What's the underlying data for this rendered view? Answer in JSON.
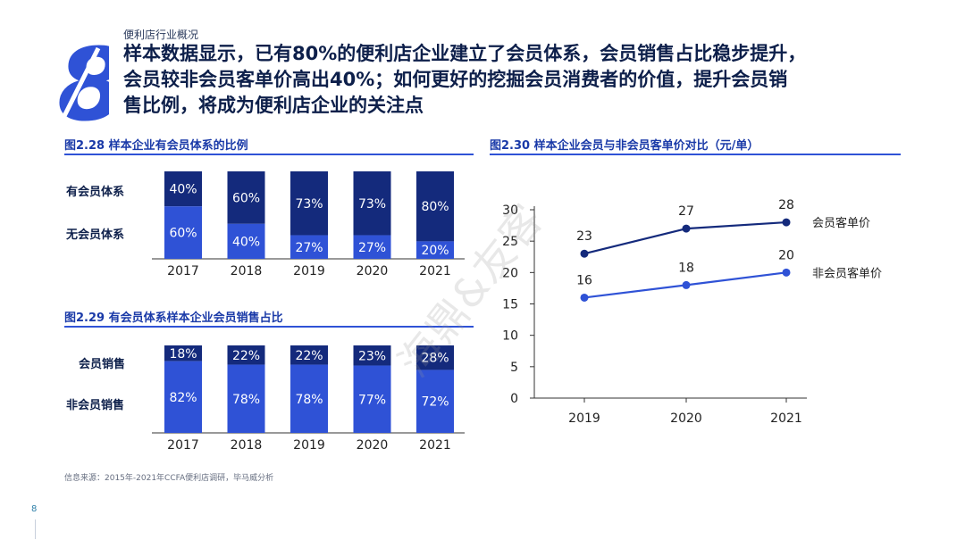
{
  "header": {
    "page_number_glyph": "8",
    "section": "便利店行业概况",
    "headline_lines": [
      "样本数据显示，已有80%的便利店企业建立了会员体系，会员销售占比稳步提升，",
      "会员较非会员客单价高出40%；如何更好的挖掘会员消费者的价值，提升会员销",
      "售比例，将成为便利店企业的关注点"
    ]
  },
  "colors": {
    "dark": "#142a7c",
    "light": "#2f52d6",
    "accent": "#1a3aa8"
  },
  "chart_data": [
    {
      "type": "bar",
      "stacked": true,
      "title": "图2.28 样本企业有会员体系的比例",
      "categories": [
        "2017",
        "2018",
        "2019",
        "2020",
        "2021"
      ],
      "series": [
        {
          "name": "有会员体系",
          "values": [
            40,
            60,
            73,
            73,
            80
          ],
          "labels": [
            "40%",
            "60%",
            "73%",
            "73%",
            "80%"
          ]
        },
        {
          "name": "无会员体系",
          "values": [
            60,
            40,
            27,
            27,
            20
          ],
          "labels": [
            "60%",
            "40%",
            "27%",
            "27%",
            "20%"
          ]
        }
      ],
      "ylim": [
        0,
        100
      ]
    },
    {
      "type": "bar",
      "stacked": true,
      "title": "图2.29 有会员体系样本企业会员销售占比",
      "categories": [
        "2017",
        "2018",
        "2019",
        "2020",
        "2021"
      ],
      "series": [
        {
          "name": "会员销售",
          "values": [
            18,
            22,
            22,
            23,
            28
          ],
          "labels": [
            "18%",
            "22%",
            "22%",
            "23%",
            "28%"
          ]
        },
        {
          "name": "非会员销售",
          "values": [
            82,
            78,
            78,
            77,
            72
          ],
          "labels": [
            "82%",
            "78%",
            "78%",
            "77%",
            "72%"
          ]
        }
      ],
      "ylim": [
        0,
        100
      ]
    },
    {
      "type": "line",
      "title": "图2.30 样本企业会员与非会员客单价对比（元/单）",
      "categories": [
        "2019",
        "2020",
        "2021"
      ],
      "series": [
        {
          "name": "会员客单价",
          "values": [
            23,
            27,
            28
          ]
        },
        {
          "name": "非会员客单价",
          "values": [
            16,
            18,
            20
          ]
        }
      ],
      "ylim": [
        0,
        30
      ],
      "yticks": [
        "0",
        "5",
        "10",
        "15",
        "20",
        "25",
        "30"
      ]
    }
  ],
  "footer": {
    "source": "信息来源：2015年-2021年CCFA便利店调研，毕马威分析",
    "page": "8",
    "watermark": "海鼎&友客"
  }
}
